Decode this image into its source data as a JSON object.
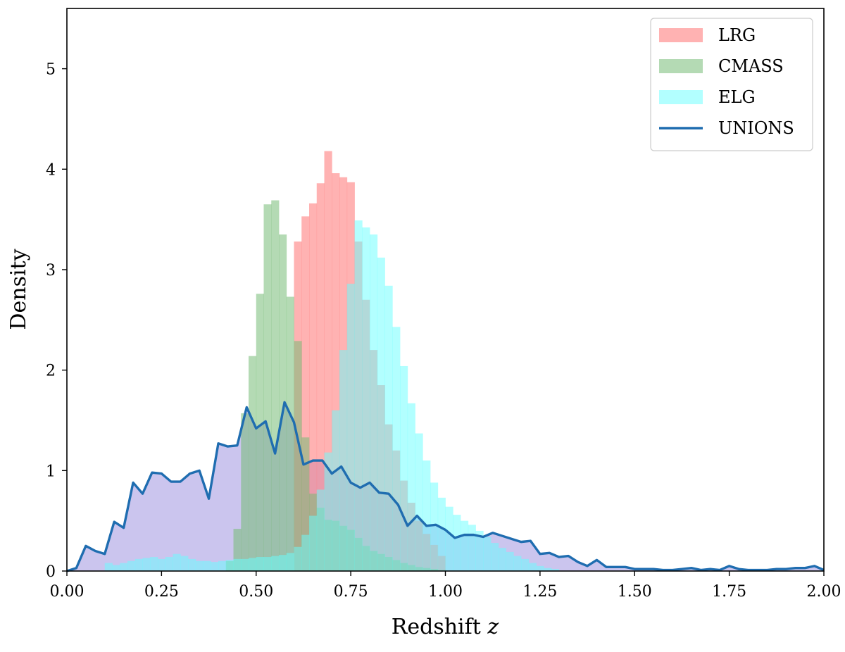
{
  "chart_data": {
    "type": "area",
    "title": "",
    "xlabel": "Redshift",
    "xlabel_var": "z",
    "ylabel": "Density",
    "xlim": [
      0.0,
      2.0
    ],
    "ylim": [
      0.0,
      5.6
    ],
    "x_ticks": [
      "0.00",
      "0.25",
      "0.50",
      "0.75",
      "1.00",
      "1.25",
      "1.50",
      "1.75",
      "2.00"
    ],
    "y_ticks": [
      "0",
      "1",
      "2",
      "3",
      "4",
      "5"
    ],
    "grid": false,
    "legend_position": "top-right",
    "series": [
      {
        "name": "LRG",
        "kind": "histogram",
        "color": "#ff7f7f",
        "opacity": 0.6,
        "bin_edges": [
          0.6,
          0.62,
          0.64,
          0.66,
          0.68,
          0.7,
          0.72,
          0.74,
          0.76,
          0.78,
          0.8,
          0.82,
          0.84,
          0.86,
          0.88,
          0.9,
          0.92,
          0.94,
          0.96,
          0.98,
          1.0
        ],
        "values": [
          3.28,
          3.53,
          3.66,
          3.86,
          4.18,
          3.96,
          3.92,
          3.87,
          3.28,
          2.7,
          2.2,
          1.85,
          1.46,
          1.2,
          0.9,
          0.68,
          0.5,
          0.37,
          0.26,
          0.15
        ]
      },
      {
        "name": "CMASS",
        "kind": "histogram",
        "color": "#77bb77",
        "opacity": 0.55,
        "bin_edges": [
          0.42,
          0.44,
          0.46,
          0.48,
          0.5,
          0.52,
          0.54,
          0.56,
          0.58,
          0.6,
          0.62,
          0.64,
          0.66,
          0.68,
          0.7,
          0.72,
          0.74,
          0.76,
          0.78,
          0.8,
          0.82,
          0.84,
          0.86,
          0.88,
          0.9,
          0.92,
          0.94,
          0.96,
          0.98,
          1.0
        ],
        "values": [
          0.1,
          0.42,
          1.57,
          2.14,
          2.76,
          3.65,
          3.69,
          3.35,
          2.73,
          2.29,
          1.33,
          0.77,
          0.63,
          0.51,
          0.5,
          0.45,
          0.41,
          0.33,
          0.25,
          0.2,
          0.17,
          0.14,
          0.11,
          0.08,
          0.06,
          0.04,
          0.03,
          0.02,
          0.01
        ]
      },
      {
        "name": "ELG",
        "kind": "histogram",
        "color": "#66ffff",
        "opacity": 0.5,
        "bin_edges": [
          0.1,
          0.12,
          0.14,
          0.16,
          0.18,
          0.2,
          0.22,
          0.24,
          0.26,
          0.28,
          0.3,
          0.32,
          0.34,
          0.36,
          0.38,
          0.4,
          0.42,
          0.44,
          0.46,
          0.48,
          0.5,
          0.52,
          0.54,
          0.56,
          0.58,
          0.6,
          0.62,
          0.64,
          0.66,
          0.68,
          0.7,
          0.72,
          0.74,
          0.76,
          0.78,
          0.8,
          0.82,
          0.84,
          0.86,
          0.88,
          0.9,
          0.92,
          0.94,
          0.96,
          0.98,
          1.0,
          1.02,
          1.04,
          1.06,
          1.08,
          1.1,
          1.12,
          1.14,
          1.16,
          1.18,
          1.2,
          1.22,
          1.24,
          1.26,
          1.28,
          1.3
        ],
        "values": [
          0.08,
          0.06,
          0.08,
          0.1,
          0.12,
          0.13,
          0.14,
          0.12,
          0.14,
          0.17,
          0.15,
          0.12,
          0.1,
          0.1,
          0.09,
          0.1,
          0.11,
          0.12,
          0.12,
          0.13,
          0.14,
          0.14,
          0.15,
          0.16,
          0.18,
          0.24,
          0.36,
          0.55,
          0.81,
          1.18,
          1.6,
          2.2,
          2.86,
          3.49,
          3.42,
          3.35,
          3.12,
          2.84,
          2.43,
          2.04,
          1.67,
          1.37,
          1.1,
          0.88,
          0.73,
          0.64,
          0.56,
          0.5,
          0.46,
          0.4,
          0.34,
          0.28,
          0.23,
          0.19,
          0.15,
          0.12,
          0.08,
          0.05,
          0.03,
          0.02
        ]
      },
      {
        "name": "UNIONS",
        "kind": "line",
        "color": "#1f6db0",
        "fill_color": "#6a5acd",
        "fill_opacity": 0.35,
        "x": [
          0.0,
          0.025,
          0.05,
          0.075,
          0.1,
          0.125,
          0.15,
          0.175,
          0.2,
          0.225,
          0.25,
          0.275,
          0.3,
          0.325,
          0.35,
          0.375,
          0.4,
          0.425,
          0.45,
          0.475,
          0.5,
          0.525,
          0.55,
          0.575,
          0.6,
          0.625,
          0.65,
          0.675,
          0.7,
          0.725,
          0.75,
          0.775,
          0.8,
          0.825,
          0.85,
          0.875,
          0.9,
          0.925,
          0.95,
          0.975,
          1.0,
          1.025,
          1.05,
          1.075,
          1.1,
          1.125,
          1.15,
          1.175,
          1.2,
          1.225,
          1.25,
          1.275,
          1.3,
          1.325,
          1.35,
          1.375,
          1.4,
          1.425,
          1.45,
          1.475,
          1.5,
          1.525,
          1.55,
          1.575,
          1.6,
          1.625,
          1.65,
          1.675,
          1.7,
          1.725,
          1.75,
          1.775,
          1.8,
          1.825,
          1.85,
          1.875,
          1.9,
          1.925,
          1.95,
          1.975,
          2.0
        ],
        "y": [
          0.0,
          0.03,
          0.25,
          0.2,
          0.17,
          0.49,
          0.43,
          0.88,
          0.77,
          0.98,
          0.97,
          0.89,
          0.89,
          0.97,
          1.0,
          0.72,
          1.27,
          1.24,
          1.25,
          1.63,
          1.42,
          1.49,
          1.17,
          1.68,
          1.48,
          1.06,
          1.1,
          1.1,
          0.97,
          1.04,
          0.88,
          0.83,
          0.88,
          0.78,
          0.77,
          0.66,
          0.45,
          0.55,
          0.45,
          0.46,
          0.41,
          0.33,
          0.36,
          0.36,
          0.34,
          0.38,
          0.35,
          0.32,
          0.29,
          0.3,
          0.17,
          0.18,
          0.14,
          0.15,
          0.09,
          0.05,
          0.11,
          0.04,
          0.04,
          0.04,
          0.02,
          0.02,
          0.02,
          0.01,
          0.01,
          0.02,
          0.03,
          0.01,
          0.02,
          0.01,
          0.05,
          0.02,
          0.01,
          0.01,
          0.01,
          0.02,
          0.02,
          0.03,
          0.03,
          0.05,
          0.01
        ]
      }
    ]
  }
}
